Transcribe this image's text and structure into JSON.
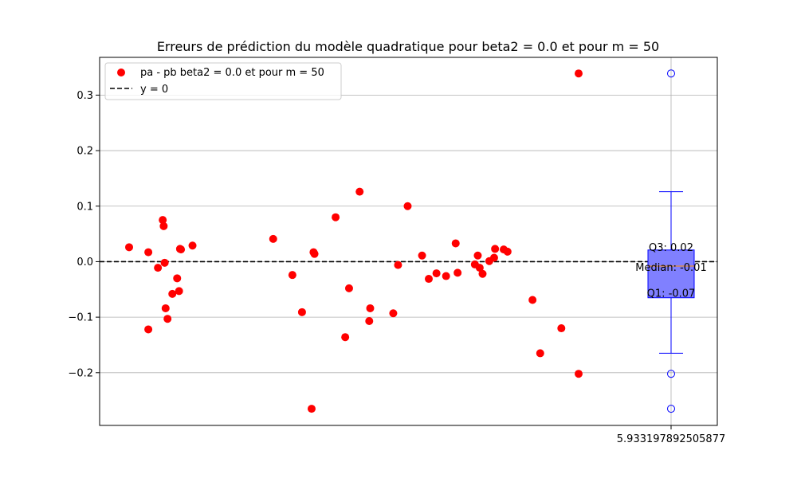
{
  "chart_data": {
    "type": "scatter",
    "title": "Erreurs de prédiction du modèle quadratique pour beta2 = 0.0 et pour m = 50",
    "xlabel": "",
    "ylabel": "",
    "ylim": [
      -0.295,
      0.368
    ],
    "y_ticks": [
      -0.2,
      -0.1,
      0.0,
      0.1,
      0.2,
      0.3
    ],
    "y_tick_labels": [
      "−0.2",
      "−0.1",
      "0.0",
      "0.1",
      "0.2",
      "0.3"
    ],
    "x_tick_label": "5.933197892505877",
    "grid": true,
    "legend_position": "top-left",
    "legend": [
      {
        "label": "pa - pb beta2 = 0.0 et pour m = 50",
        "marker": "dot",
        "color": "#ff0000"
      },
      {
        "label": "y = 0",
        "marker": "dashed-line",
        "color": "#000000"
      }
    ],
    "series": [
      {
        "name": "pa - pb beta2 = 0.0 et pour m = 50",
        "color": "#ff0000",
        "points": [
          [
            1,
            0.026
          ],
          [
            3,
            0.017
          ],
          [
            3,
            -0.122
          ],
          [
            4,
            -0.011
          ],
          [
            4.5,
            0.075
          ],
          [
            4.6,
            0.064
          ],
          [
            4.7,
            -0.002
          ],
          [
            4.8,
            -0.084
          ],
          [
            5,
            -0.103
          ],
          [
            5.5,
            -0.058
          ],
          [
            6,
            -0.03
          ],
          [
            6.3,
            0.023
          ],
          [
            6.2,
            -0.053
          ],
          [
            6.4,
            0.022
          ],
          [
            7.6,
            0.029
          ],
          [
            16,
            0.041
          ],
          [
            18,
            -0.024
          ],
          [
            19,
            -0.091
          ],
          [
            20,
            -0.265
          ],
          [
            20.2,
            0.017
          ],
          [
            20.3,
            0.014
          ],
          [
            22.5,
            0.08
          ],
          [
            23.5,
            -0.136
          ],
          [
            23.9,
            -0.048
          ],
          [
            25,
            0.126
          ],
          [
            26,
            -0.107
          ],
          [
            26.1,
            -0.084
          ],
          [
            28.5,
            -0.093
          ],
          [
            29,
            -0.006
          ],
          [
            30,
            0.1
          ],
          [
            31.5,
            0.011
          ],
          [
            32.2,
            -0.031
          ],
          [
            33,
            -0.021
          ],
          [
            34,
            -0.026
          ],
          [
            35,
            0.033
          ],
          [
            35.2,
            -0.02
          ],
          [
            37,
            -0.005
          ],
          [
            37.5,
            -0.011
          ],
          [
            37.3,
            0.011
          ],
          [
            37.8,
            -0.022
          ],
          [
            38.5,
            0.001
          ],
          [
            39,
            0.007
          ],
          [
            39.1,
            0.023
          ],
          [
            40,
            0.022
          ],
          [
            40.4,
            0.018
          ],
          [
            43,
            -0.069
          ],
          [
            43.8,
            -0.165
          ],
          [
            46,
            -0.12
          ],
          [
            47.8,
            0.339
          ],
          [
            47.8,
            -0.202
          ]
        ]
      }
    ],
    "reference_line": {
      "label": "y = 0",
      "y": 0.0,
      "color": "#000000",
      "style": "dashed"
    },
    "boxplot": {
      "q1": -0.065,
      "median": -0.008,
      "q3": 0.021,
      "whisker_low": -0.165,
      "whisker_high": 0.126,
      "outliers": [
        0.339,
        -0.202,
        -0.265
      ],
      "fill_color": "#8080ff",
      "edge_color": "#0000ff",
      "labels": {
        "q3": "Q3: 0.02",
        "median": "Median: -0.01",
        "q1": "Q1: -0.07"
      }
    }
  }
}
